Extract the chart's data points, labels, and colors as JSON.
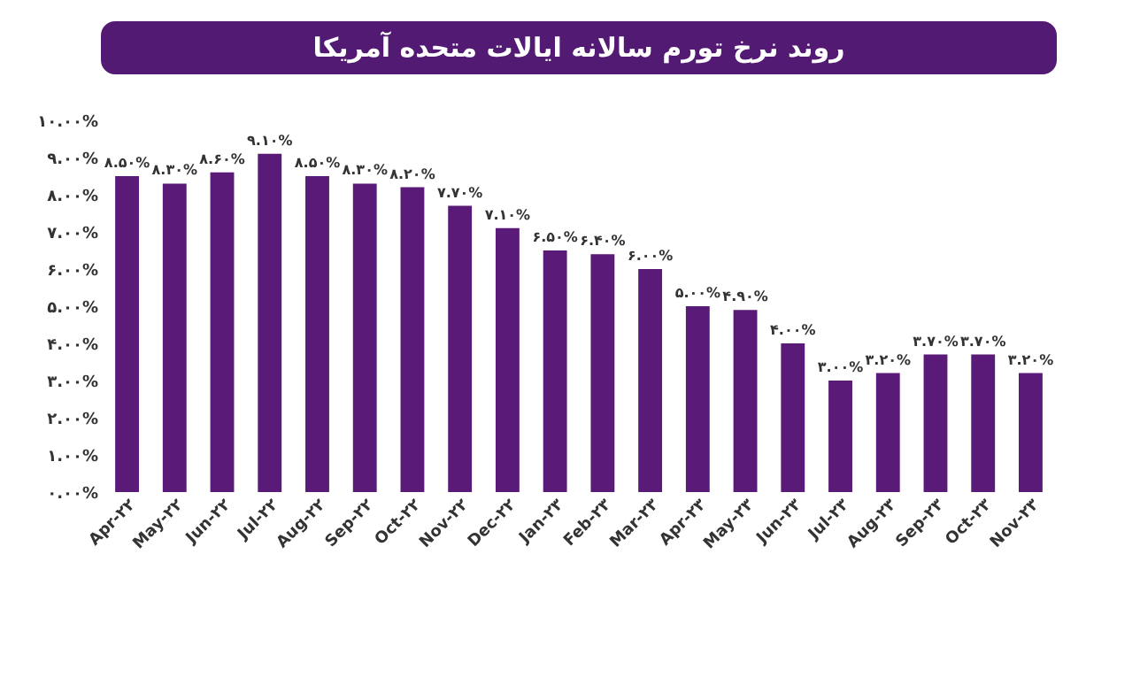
{
  "chart_data": {
    "type": "bar",
    "title": "روند نرخ تورم سالانه ایالات متحده آمریکا",
    "categories": [
      "Apr-۲۲",
      "May-۲۲",
      "Jun-۲۲",
      "Jul-۲۲",
      "Aug-۲۲",
      "Sep-۲۲",
      "Oct-۲۲",
      "Nov-۲۲",
      "Dec-۲۲",
      "Jan-۲۳",
      "Feb-۲۳",
      "Mar-۲۳",
      "Apr-۲۳",
      "May-۲۳",
      "Jun-۲۳",
      "Jul-۲۳",
      "Aug-۲۳",
      "Sep-۲۳",
      "Oct-۲۳",
      "Nov-۲۳"
    ],
    "values": [
      8.5,
      8.3,
      8.6,
      9.1,
      8.5,
      8.3,
      8.2,
      7.7,
      7.1,
      6.5,
      6.4,
      6.0,
      5.0,
      4.9,
      4.0,
      3.0,
      3.2,
      3.7,
      3.7,
      3.2
    ],
    "value_labels": [
      "۸.۵۰%",
      "۸.۳۰%",
      "۸.۶۰%",
      "۹.۱۰%",
      "۸.۵۰%",
      "۸.۳۰%",
      "۸.۲۰%",
      "۷.۷۰%",
      "۷.۱۰%",
      "۶.۵۰%",
      "۶.۴۰%",
      "۶.۰۰%",
      "۵.۰۰%",
      "۴.۹۰%",
      "۴.۰۰%",
      "۳.۰۰%",
      "۳.۲۰%",
      "۳.۷۰%",
      "۳.۷۰%",
      "۳.۲۰%"
    ],
    "color": "#5a1a78",
    "ylim": [
      0,
      10
    ],
    "yticks": [
      {
        "value": 0,
        "label": "۰.۰۰%"
      },
      {
        "value": 1,
        "label": "۱.۰۰%"
      },
      {
        "value": 2,
        "label": "۲.۰۰%"
      },
      {
        "value": 3,
        "label": "۳.۰۰%"
      },
      {
        "value": 4,
        "label": "۴.۰۰%"
      },
      {
        "value": 5,
        "label": "۵.۰۰%"
      },
      {
        "value": 6,
        "label": "۶.۰۰%"
      },
      {
        "value": 7,
        "label": "۷.۰۰%"
      },
      {
        "value": 8,
        "label": "۸.۰۰%"
      },
      {
        "value": 9,
        "label": "۹.۰۰%"
      },
      {
        "value": 10,
        "label": "۱۰.۰۰%"
      }
    ],
    "grid": false
  }
}
